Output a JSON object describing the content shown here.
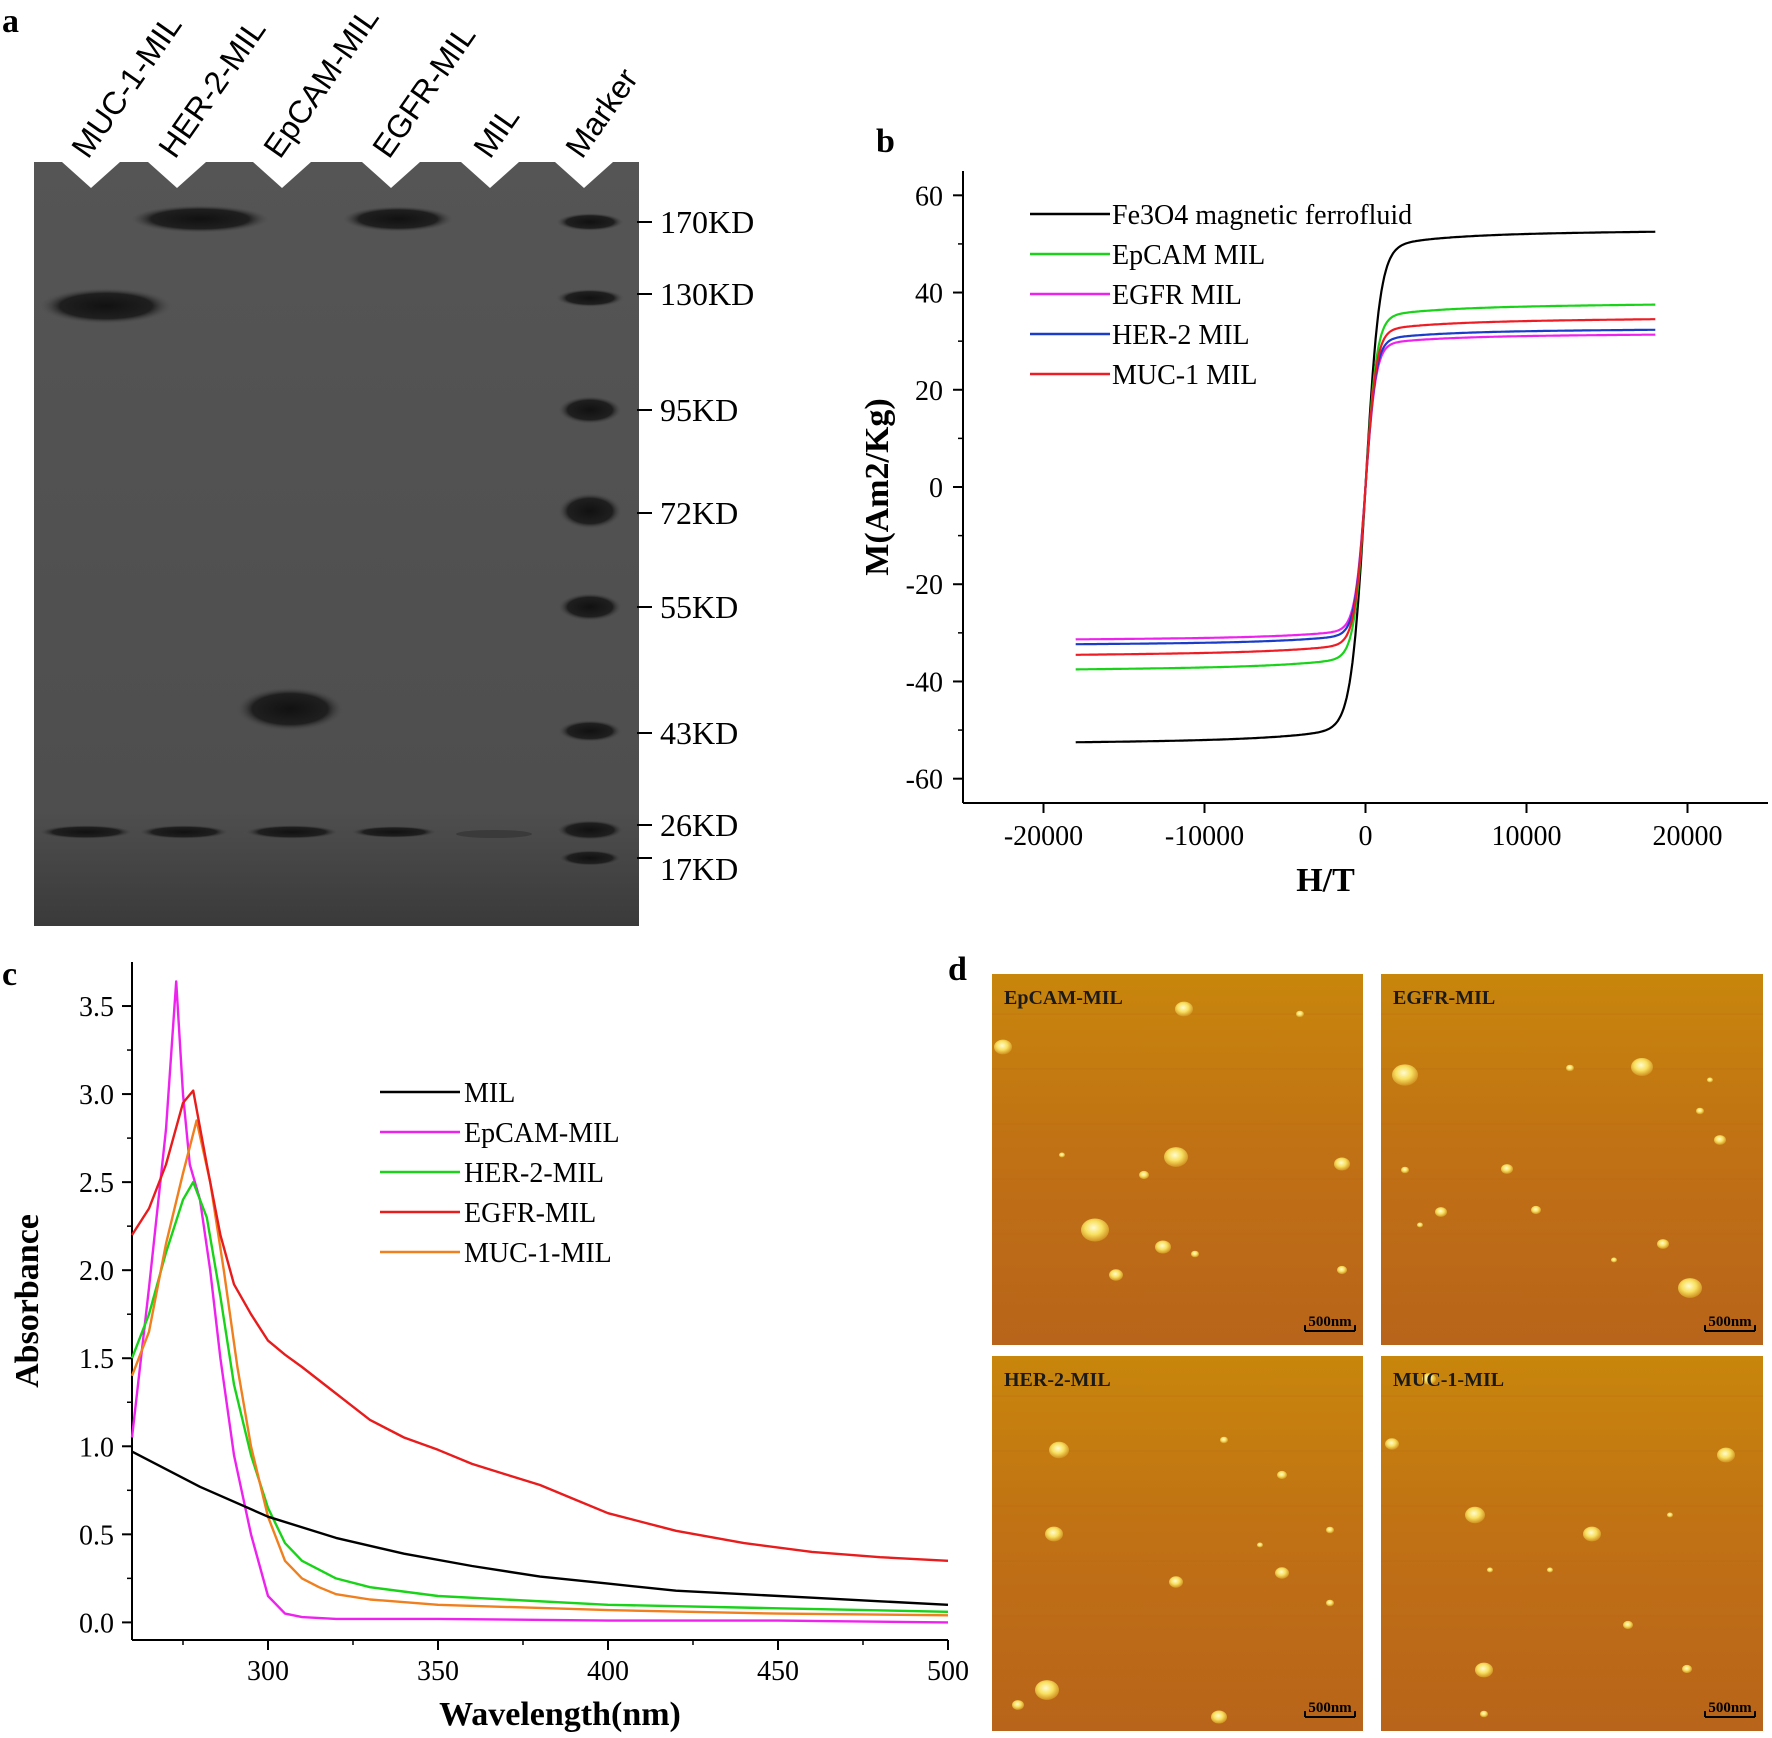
{
  "panels": {
    "a": {
      "letter": "a",
      "lanes": [
        "MUC-1-MIL",
        "HER-2-MIL",
        "EpCAM-MIL",
        "EGFR-MIL",
        "MIL",
        "Marker"
      ],
      "markers": [
        "170KD",
        "130KD",
        "95KD",
        "72KD",
        "55KD",
        "43KD",
        "26KD",
        "17KD"
      ]
    },
    "b": {
      "letter": "b"
    },
    "c": {
      "letter": "c"
    },
    "d": {
      "letter": "d",
      "images": [
        "EpCAM-MIL",
        "EGFR-MIL",
        "HER-2-MIL",
        "MUC-1-MIL"
      ],
      "scale_bar": "500nm"
    }
  },
  "chart_data": [
    {
      "id": "b",
      "type": "line",
      "title": "",
      "xlabel": "H/T",
      "ylabel": "M(Am2/Kg)",
      "xlim": [
        -25000,
        25000
      ],
      "ylim": [
        -65,
        65
      ],
      "xticks": [
        -20000,
        -10000,
        0,
        10000,
        20000
      ],
      "yticks": [
        -60,
        -40,
        -20,
        0,
        20,
        40,
        60
      ],
      "legend_position": "top-left",
      "series": [
        {
          "name": "Fe3O4 magnetic ferrofluid",
          "color": "#000000",
          "ms": 52,
          "slope": 3e-05,
          "h0": 700
        },
        {
          "name": "EpCAM MIL",
          "color": "#19d319",
          "ms": 37,
          "slope": 3e-05,
          "h0": 560
        },
        {
          "name": "EGFR MIL",
          "color": "#ee22ee",
          "ms": 31,
          "slope": 2e-05,
          "h0": 520
        },
        {
          "name": "HER-2 MIL",
          "color": "#1a3cc8",
          "ms": 32,
          "slope": 2e-05,
          "h0": 520
        },
        {
          "name": "MUC-1 MIL",
          "color": "#ee1c24",
          "ms": 34,
          "slope": 3e-05,
          "h0": 540
        }
      ],
      "h_range": [
        -18000,
        18000
      ]
    },
    {
      "id": "c",
      "type": "line",
      "title": "",
      "xlabel": "Wavelength(nm)",
      "ylabel": "Absorbance",
      "xlim": [
        260,
        500
      ],
      "ylim": [
        -0.1,
        3.75
      ],
      "xticks": [
        300,
        350,
        400,
        450,
        500
      ],
      "yticks": [
        0.0,
        0.5,
        1.0,
        1.5,
        2.0,
        2.5,
        3.0,
        3.5
      ],
      "ytick_labels": [
        "0.0",
        "0.5",
        "1.0",
        "1.5",
        "2.0",
        "2.5",
        "3.0",
        "3.5"
      ],
      "legend_position": "top-right",
      "series": [
        {
          "name": "MIL",
          "color": "#000000",
          "x": [
            260,
            280,
            300,
            320,
            340,
            360,
            380,
            400,
            420,
            440,
            460,
            480,
            500
          ],
          "y": [
            0.97,
            0.77,
            0.6,
            0.48,
            0.39,
            0.32,
            0.26,
            0.22,
            0.18,
            0.16,
            0.14,
            0.12,
            0.1
          ]
        },
        {
          "name": "EpCAM-MIL",
          "color": "#ee22ee",
          "x": [
            260,
            265,
            270,
            273,
            275,
            277,
            280,
            283,
            286,
            290,
            295,
            300,
            305,
            310,
            320,
            350,
            400,
            450,
            500
          ],
          "y": [
            1.05,
            1.9,
            2.8,
            3.64,
            3.0,
            2.6,
            2.4,
            2.0,
            1.5,
            0.95,
            0.5,
            0.15,
            0.05,
            0.03,
            0.02,
            0.02,
            0.01,
            0.01,
            0.0
          ]
        },
        {
          "name": "HER-2-MIL",
          "color": "#19d319",
          "x": [
            260,
            265,
            270,
            275,
            278,
            282,
            286,
            290,
            295,
            300,
            305,
            310,
            320,
            330,
            350,
            400,
            450,
            500
          ],
          "y": [
            1.5,
            1.75,
            2.1,
            2.4,
            2.5,
            2.3,
            1.85,
            1.35,
            0.95,
            0.65,
            0.45,
            0.35,
            0.25,
            0.2,
            0.15,
            0.1,
            0.08,
            0.06
          ]
        },
        {
          "name": "EGFR-MIL",
          "color": "#e81c1c",
          "x": [
            260,
            265,
            270,
            275,
            278,
            282,
            286,
            290,
            295,
            300,
            305,
            310,
            320,
            330,
            340,
            350,
            360,
            370,
            380,
            390,
            400,
            420,
            440,
            460,
            480,
            500
          ],
          "y": [
            2.2,
            2.35,
            2.6,
            2.95,
            3.02,
            2.6,
            2.2,
            1.92,
            1.75,
            1.6,
            1.52,
            1.45,
            1.3,
            1.15,
            1.05,
            0.98,
            0.9,
            0.84,
            0.78,
            0.7,
            0.62,
            0.52,
            0.45,
            0.4,
            0.37,
            0.35
          ]
        },
        {
          "name": "MUC-1-MIL",
          "color": "#f07f1e",
          "x": [
            260,
            265,
            270,
            275,
            279,
            283,
            287,
            291,
            295,
            300,
            305,
            310,
            315,
            320,
            330,
            350,
            400,
            450,
            500
          ],
          "y": [
            1.4,
            1.65,
            2.15,
            2.55,
            2.85,
            2.5,
            2.0,
            1.45,
            1.0,
            0.6,
            0.35,
            0.25,
            0.2,
            0.16,
            0.13,
            0.1,
            0.07,
            0.05,
            0.04
          ]
        }
      ]
    }
  ]
}
